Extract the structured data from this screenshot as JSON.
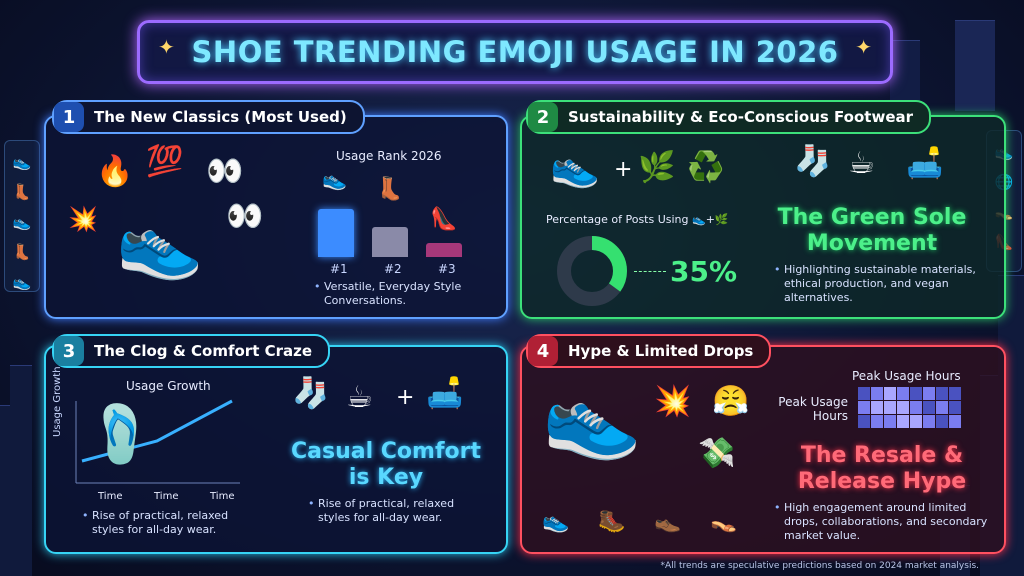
{
  "title": "SHOE TRENDING EMOJI USAGE IN 2026",
  "panels": {
    "p1": {
      "num": "1",
      "title": "The New Classics (Most Used)",
      "rank_title": "Usage Rank 2026",
      "ranks": [
        "#1",
        "#2",
        "#3"
      ],
      "bullet": "Versatile, Everyday Style Conversations.",
      "emojis": {
        "fire": "🔥",
        "hundred": "💯",
        "eyes": "👀",
        "boom": "💥",
        "sneaker": "👟",
        "boot": "👢",
        "heel": "👠"
      }
    },
    "p2": {
      "num": "2",
      "title": "Sustainability & Eco-Conscious Footwear",
      "donut_label": "Percentage of Posts Using 👟+🌿",
      "percent_text": "35%",
      "big_text_1": "The Green Sole",
      "big_text_2": "Movement",
      "bullet": "Highlighting sustainable materials, ethical production, and vegan alternatives.",
      "emojis": {
        "sneaker": "👟",
        "plus": "+",
        "herb": "🌿",
        "recycle": "♻️",
        "socks": "🧦",
        "coffee": "☕",
        "couch": "🛋️"
      }
    },
    "p3": {
      "num": "3",
      "title": "The Clog & Comfort Craze",
      "chart_title": "Usage Growth",
      "y_label": "Usage Growth",
      "x_ticks": [
        "Time",
        "Time",
        "Time"
      ],
      "bullet_left": "Rise of practical, relaxed styles for all-day wear.",
      "big_text_1": "Casual Comfort",
      "big_text_2": "is Key",
      "bullet_right": "Rise of practical, relaxed styles for all-day wear.",
      "emojis": {
        "socks": "🧦",
        "coffee": "☕",
        "plus": "+",
        "couch": "🛋️"
      }
    },
    "p4": {
      "num": "4",
      "title": "Hype & Limited Drops",
      "heatmap_title": "Peak Usage Hours",
      "heatmap_label": "Peak Usage Hours",
      "big_text_1": "The Resale &",
      "big_text_2": "Release Hype",
      "bullet": "High engagement around limited drops, collaborations, and secondary market value.",
      "emojis": {
        "boom": "💥",
        "steam": "😤",
        "money": "💸",
        "sneaker": "👟",
        "boot": "🥾",
        "heel": "👠",
        "shoe": "👞",
        "sandal": "👡"
      }
    }
  },
  "footnote": "*All trends are speculative predictions based on 2024 market analysis.",
  "chart_data": [
    {
      "type": "bar",
      "title": "Usage Rank 2026",
      "categories": [
        "#1",
        "#2",
        "#3"
      ],
      "values": [
        3,
        2,
        1
      ]
    },
    {
      "type": "pie",
      "title": "Percentage of Posts Using 👟+🌿",
      "values": [
        35,
        65
      ]
    },
    {
      "type": "line",
      "title": "Usage Growth",
      "ylabel": "Usage Growth",
      "x": [
        "Time",
        "Time",
        "Time"
      ],
      "values": [
        1,
        2,
        4
      ]
    },
    {
      "type": "heatmap",
      "title": "Peak Usage Hours",
      "rows": 3,
      "cols": 8,
      "values": [
        [
          1,
          2,
          3,
          2,
          1,
          2,
          1,
          1
        ],
        [
          2,
          3,
          3,
          3,
          2,
          1,
          2,
          1
        ],
        [
          1,
          2,
          2,
          3,
          3,
          2,
          1,
          2
        ]
      ]
    }
  ],
  "colors": {
    "accent_blue": "#5fa0ff",
    "accent_green": "#3ce07a",
    "accent_cyan": "#36d4f5",
    "accent_red": "#ff5060",
    "title_glow": "#7ee8ff"
  }
}
